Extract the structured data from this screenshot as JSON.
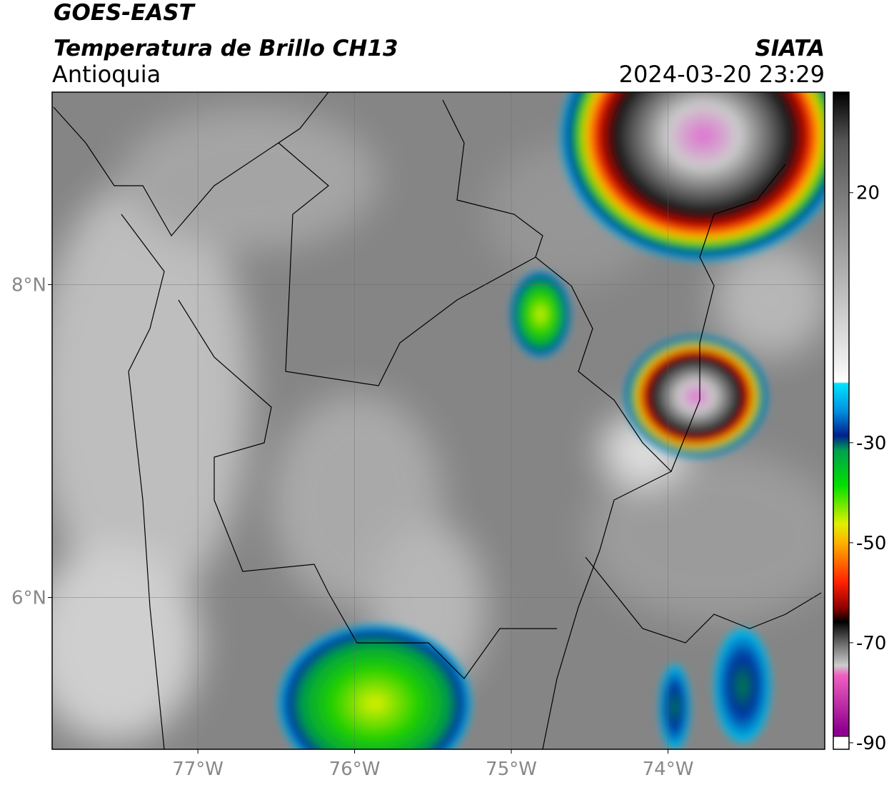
{
  "header": {
    "title": "GOES-EAST",
    "subtitle": "Temperatura de Brillo CH13",
    "region": "Antioquia",
    "source": "SIATA",
    "datetime": "2024-03-20 23:29"
  },
  "map": {
    "xlim": [
      -77.93,
      -73.0
    ],
    "ylim": [
      5.03,
      9.23
    ],
    "xticks": [
      {
        "value": -77,
        "label": "77°W"
      },
      {
        "value": -76,
        "label": "76°W"
      },
      {
        "value": -75,
        "label": "75°W"
      },
      {
        "value": -74,
        "label": "74°W"
      }
    ],
    "yticks": [
      {
        "value": 8,
        "label": "8°N"
      },
      {
        "value": 6,
        "label": "6°N"
      }
    ],
    "grid": true
  },
  "colorbar": {
    "range": [
      -91.3,
      40.1
    ],
    "ticks": [
      20,
      -30,
      -50,
      -70,
      -90
    ]
  }
}
